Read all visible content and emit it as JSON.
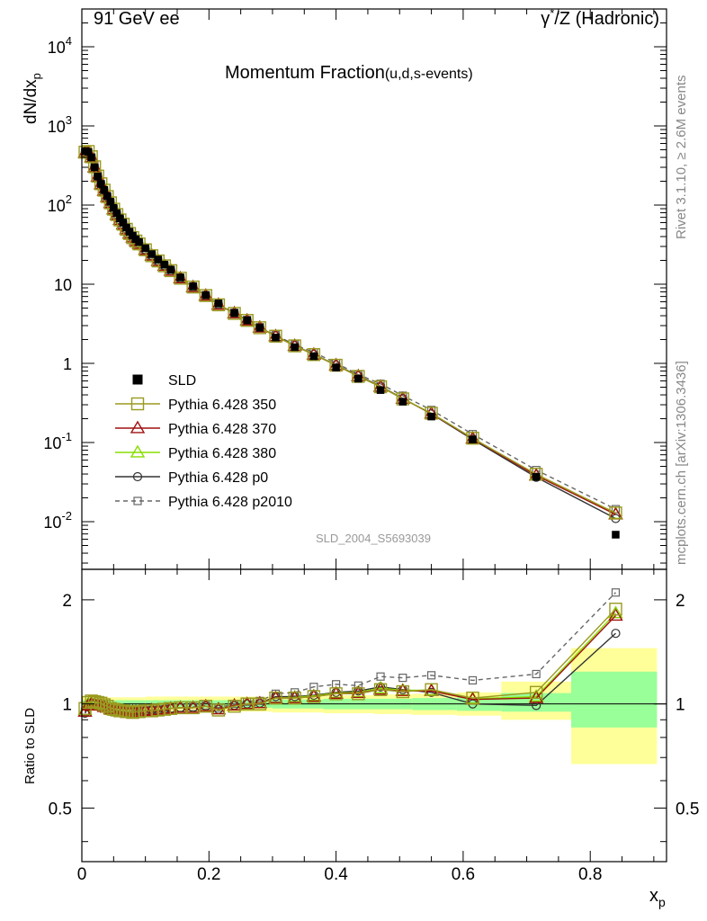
{
  "header": {
    "left": "91 GeV ee",
    "right_prefix": "γ",
    "right_sup": "*",
    "right_suffix": "/Z (Hadronic)"
  },
  "side": {
    "rivet": "Rivet 3.1.10, ≥ 2.6M events",
    "mcplots": "mcplots.cern.ch [arXiv:1306.3436]"
  },
  "colors": {
    "data": "#000000",
    "p350": "#9a9a20",
    "p370": "#a01010",
    "p380": "#88dd00",
    "p0": "#333333",
    "p2010": "#666666",
    "band_inner": "#99ff99",
    "band_outer": "#ffff99"
  },
  "chart_data": {
    "type": "line",
    "title": "Momentum Fraction",
    "title_suffix": "(u,d,s-events)",
    "analysis_id": "SLD_2004_S5693039",
    "xlabel_main": "x",
    "xlabel_sub": "p",
    "ylabel_main": "dN/dx",
    "ylabel_sub": "p",
    "ratio_ylabel": "Ratio to SLD",
    "xlim": [
      0,
      0.92
    ],
    "ylim_main": [
      0.0025,
      30000
    ],
    "ylim_ratio": [
      0.35,
      2.45
    ],
    "log_y_main": true,
    "log_y_ratio": true,
    "legend_position": "middle-left",
    "x_ticks": [
      "0",
      "0.2",
      "0.4",
      "0.6",
      "0.8"
    ],
    "main_y_ticks": [
      {
        "base": "10",
        "exp": "-2"
      },
      {
        "base": "10",
        "exp": "-1"
      },
      {
        "base": "1",
        "exp": ""
      },
      {
        "base": "10",
        "exp": ""
      },
      {
        "base": "10",
        "exp": "2"
      },
      {
        "base": "10",
        "exp": "3"
      },
      {
        "base": "10",
        "exp": "4"
      }
    ],
    "ratio_y_ticks": [
      "0.5",
      "1",
      "2"
    ],
    "x": [
      0.005,
      0.01,
      0.015,
      0.02,
      0.025,
      0.03,
      0.035,
      0.04,
      0.045,
      0.05,
      0.055,
      0.06,
      0.065,
      0.07,
      0.075,
      0.08,
      0.085,
      0.09,
      0.1,
      0.11,
      0.12,
      0.13,
      0.14,
      0.155,
      0.175,
      0.195,
      0.215,
      0.24,
      0.26,
      0.28,
      0.305,
      0.335,
      0.365,
      0.4,
      0.435,
      0.47,
      0.505,
      0.55,
      0.615,
      0.715,
      0.84
    ],
    "bands": [
      {
        "x0": 0.0,
        "x1": 0.1,
        "inner": [
          0.975,
          1.025
        ],
        "outer": [
          0.955,
          1.045
        ]
      },
      {
        "x0": 0.1,
        "x1": 0.2,
        "inner": [
          0.975,
          1.025
        ],
        "outer": [
          0.95,
          1.05
        ]
      },
      {
        "x0": 0.2,
        "x1": 0.3,
        "inner": [
          0.975,
          1.025
        ],
        "outer": [
          0.95,
          1.05
        ]
      },
      {
        "x0": 0.3,
        "x1": 0.38,
        "inner": [
          0.97,
          1.03
        ],
        "outer": [
          0.945,
          1.055
        ]
      },
      {
        "x0": 0.38,
        "x1": 0.46,
        "inner": [
          0.965,
          1.035
        ],
        "outer": [
          0.94,
          1.06
        ]
      },
      {
        "x0": 0.46,
        "x1": 0.52,
        "inner": [
          0.965,
          1.035
        ],
        "outer": [
          0.935,
          1.065
        ]
      },
      {
        "x0": 0.52,
        "x1": 0.59,
        "inner": [
          0.96,
          1.04
        ],
        "outer": [
          0.93,
          1.07
        ]
      },
      {
        "x0": 0.59,
        "x1": 0.66,
        "inner": [
          0.955,
          1.045
        ],
        "outer": [
          0.925,
          1.08
        ]
      },
      {
        "x0": 0.66,
        "x1": 0.77,
        "inner": [
          0.95,
          1.075
        ],
        "outer": [
          0.9,
          1.16
        ]
      },
      {
        "x0": 0.77,
        "x1": 0.905,
        "inner": [
          0.855,
          1.24
        ],
        "outer": [
          0.67,
          1.45
        ]
      }
    ],
    "series": [
      {
        "name": "SLD",
        "key": "data",
        "marker": "filled-square",
        "line": "none",
        "values": [
          480,
          470,
          400,
          300,
          230,
          185,
          155,
          130,
          110,
          92,
          79,
          68,
          60,
          52,
          46,
          41,
          37,
          34,
          28.5,
          24,
          20.5,
          17.7,
          15.3,
          12.2,
          9.45,
          7.3,
          5.72,
          4.34,
          3.49,
          2.82,
          2.12,
          1.6,
          1.23,
          0.885,
          0.64,
          0.46,
          0.328,
          0.213,
          0.109,
          0.0368,
          0.00685
        ]
      },
      {
        "name": "Pythia 6.428 350",
        "key": "p350",
        "marker": "open-square",
        "line": "solid",
        "values": [
          0.97,
          1.01,
          1.02,
          1.015,
          1.01,
          1.005,
          0.995,
          0.985,
          0.97,
          0.965,
          0.96,
          0.955,
          0.955,
          0.95,
          0.95,
          0.945,
          0.95,
          0.95,
          0.955,
          0.955,
          0.96,
          0.965,
          0.97,
          0.975,
          0.975,
          0.985,
          0.96,
          0.985,
          1.0,
          1.0,
          1.04,
          1.04,
          1.05,
          1.07,
          1.07,
          1.1,
          1.085,
          1.1,
          1.04,
          1.08,
          1.88
        ]
      },
      {
        "name": "Pythia 6.428 370",
        "key": "p370",
        "marker": "open-triangle",
        "line": "solid",
        "values": [
          0.95,
          0.99,
          1.0,
          1.0,
          0.995,
          0.99,
          0.98,
          0.975,
          0.965,
          0.96,
          0.955,
          0.955,
          0.95,
          0.95,
          0.95,
          0.95,
          0.95,
          0.95,
          0.955,
          0.96,
          0.96,
          0.965,
          0.97,
          0.975,
          0.975,
          0.985,
          0.965,
          0.99,
          1.0,
          1.005,
          1.04,
          1.04,
          1.05,
          1.07,
          1.075,
          1.1,
          1.09,
          1.09,
          1.03,
          1.04,
          1.8
        ]
      },
      {
        "name": "Pythia 6.428 380",
        "key": "p380",
        "marker": "open-triangle",
        "line": "solid",
        "values": [
          0.96,
          1.0,
          1.005,
          1.0,
          0.995,
          0.99,
          0.985,
          0.975,
          0.97,
          0.965,
          0.96,
          0.955,
          0.955,
          0.95,
          0.95,
          0.95,
          0.95,
          0.95,
          0.955,
          0.96,
          0.96,
          0.965,
          0.97,
          0.975,
          0.975,
          0.985,
          0.965,
          0.99,
          1.0,
          1.005,
          1.04,
          1.045,
          1.055,
          1.075,
          1.08,
          1.11,
          1.095,
          1.095,
          1.035,
          1.05,
          1.83
        ]
      },
      {
        "name": "Pythia 6.428 p0",
        "key": "p0",
        "marker": "open-circle",
        "line": "solid",
        "values": [
          0.94,
          0.98,
          1.0,
          1.0,
          0.995,
          0.99,
          0.98,
          0.97,
          0.965,
          0.96,
          0.955,
          0.955,
          0.95,
          0.95,
          0.95,
          0.95,
          0.955,
          0.955,
          0.955,
          0.96,
          0.96,
          0.965,
          0.97,
          0.975,
          0.975,
          0.985,
          0.965,
          0.99,
          1.0,
          1.005,
          1.05,
          1.05,
          1.06,
          1.08,
          1.09,
          1.12,
          1.1,
          1.08,
          1.0,
          0.99,
          1.6
        ]
      },
      {
        "name": "Pythia 6.428 p2010",
        "key": "p2010",
        "marker": "open-small-square",
        "line": "dashed",
        "values": [
          0.95,
          0.99,
          1.0,
          1.0,
          0.995,
          0.99,
          0.98,
          0.975,
          0.965,
          0.96,
          0.955,
          0.955,
          0.95,
          0.95,
          0.95,
          0.95,
          0.955,
          0.955,
          0.955,
          0.96,
          0.96,
          0.965,
          0.97,
          0.975,
          0.98,
          0.99,
          0.975,
          1.0,
          1.015,
          1.02,
          1.07,
          1.08,
          1.12,
          1.14,
          1.13,
          1.2,
          1.19,
          1.21,
          1.17,
          1.22,
          2.1
        ]
      }
    ]
  }
}
